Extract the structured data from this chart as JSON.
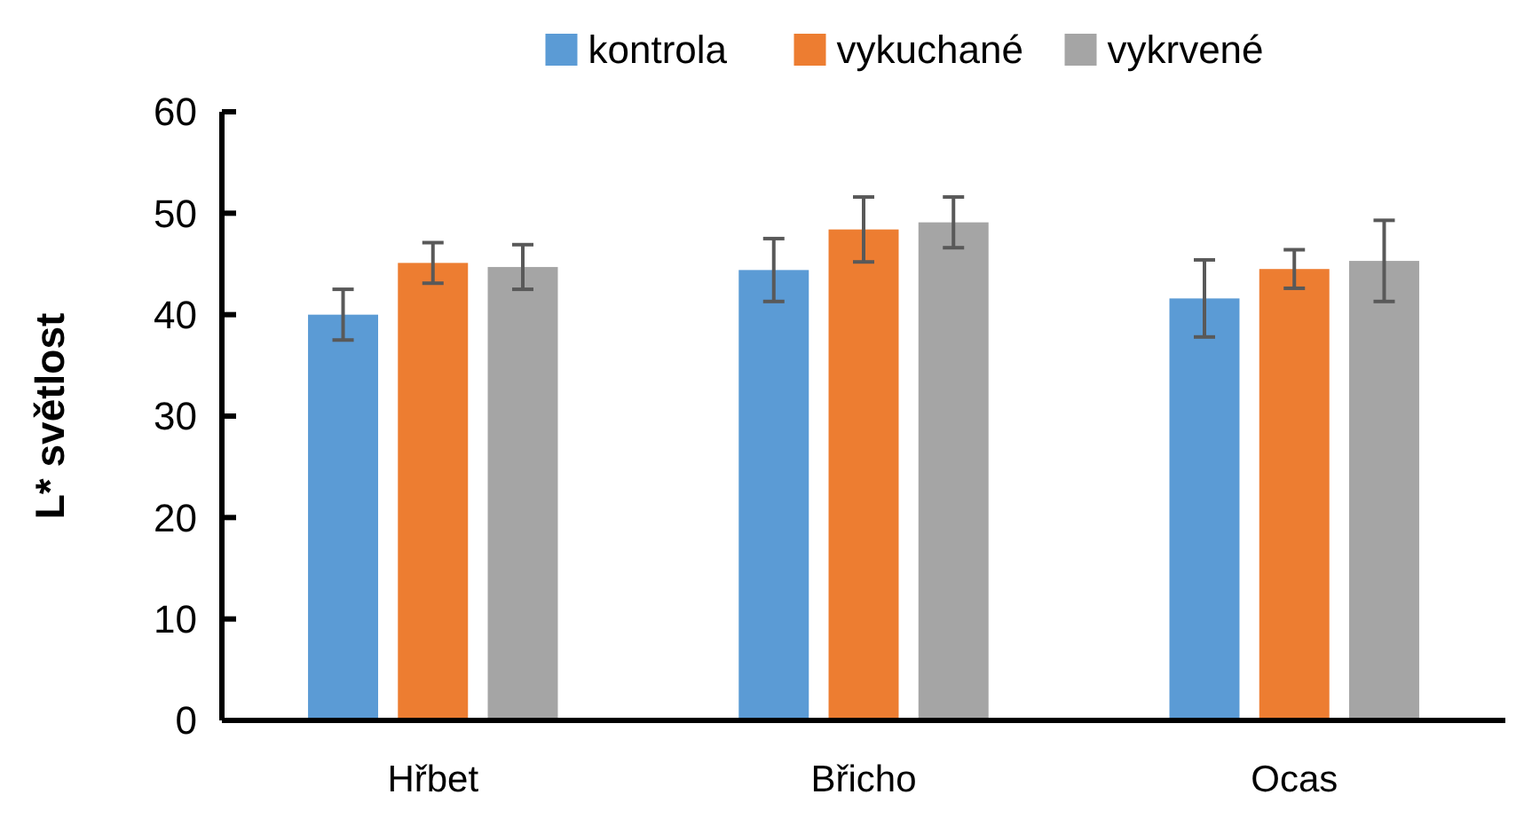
{
  "chart_data": {
    "type": "bar",
    "ylabel": "L* světlost",
    "categories": [
      "Hřbet",
      "Břicho",
      "Ocas"
    ],
    "series": [
      {
        "name": "kontrola",
        "color": "#5b9bd5",
        "values": [
          40.0,
          44.4,
          41.6
        ],
        "errors": [
          2.5,
          3.1,
          3.8
        ]
      },
      {
        "name": "vykuchané",
        "color": "#ed7d31",
        "values": [
          45.1,
          48.4,
          44.5
        ],
        "errors": [
          2.0,
          3.2,
          1.9
        ]
      },
      {
        "name": "vykrvené",
        "color": "#a5a5a5",
        "values": [
          44.7,
          49.1,
          45.3
        ],
        "errors": [
          2.2,
          2.5,
          4.0
        ]
      }
    ],
    "ylim": [
      0,
      60
    ],
    "yticks": [
      0,
      10,
      20,
      30,
      40,
      50,
      60
    ],
    "grid": false,
    "legend": "top"
  }
}
